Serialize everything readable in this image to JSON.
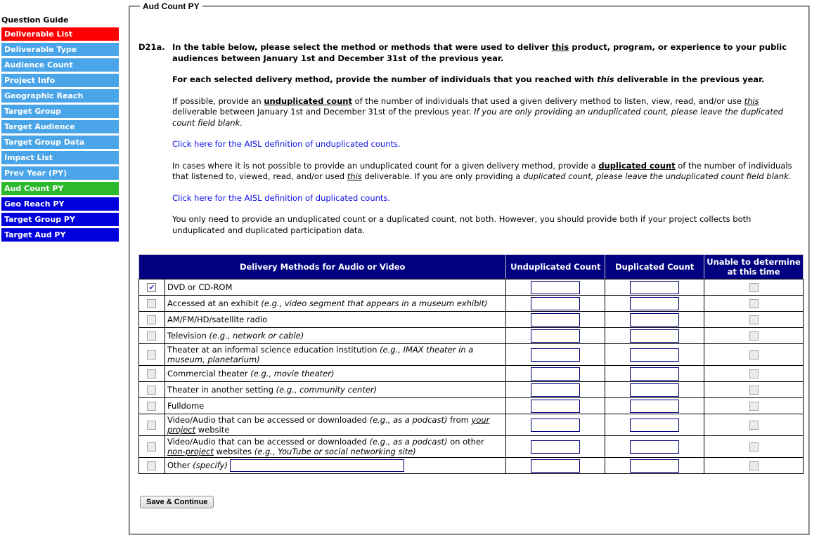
{
  "colors": {
    "sidebar_red": "#ff0000",
    "sidebar_lightblue": "#4aa5e8",
    "sidebar_green": "#2db92d",
    "sidebar_darkblue": "#0000dd",
    "table_header_bg": "#000080",
    "link_blue": "#0e0ee4",
    "input_border": "#000080"
  },
  "icons": {
    "checkmark": "✔"
  },
  "sidebar": {
    "title": "Question Guide",
    "items": [
      {
        "label": "Deliverable List",
        "color": "sidebar_red"
      },
      {
        "label": "Deliverable Type",
        "color": "sidebar_lightblue"
      },
      {
        "label": "Audience Count",
        "color": "sidebar_lightblue"
      },
      {
        "label": "Project Info",
        "color": "sidebar_lightblue"
      },
      {
        "label": "Geographic Reach",
        "color": "sidebar_lightblue"
      },
      {
        "label": "Target Group",
        "color": "sidebar_lightblue"
      },
      {
        "label": "Target Audience",
        "color": "sidebar_lightblue"
      },
      {
        "label": "Target Group Data",
        "color": "sidebar_lightblue"
      },
      {
        "label": "Impact List",
        "color": "sidebar_lightblue"
      },
      {
        "label": "Prev Year (PY)",
        "color": "sidebar_lightblue"
      },
      {
        "label": "Aud Count PY",
        "color": "sidebar_green"
      },
      {
        "label": "Geo Reach PY",
        "color": "sidebar_darkblue"
      },
      {
        "label": "Target Group PY",
        "color": "sidebar_darkblue"
      },
      {
        "label": "Target Aud PY",
        "color": "sidebar_darkblue"
      }
    ]
  },
  "panel": {
    "legend": "Aud Count PY"
  },
  "question": {
    "number": "D21a.",
    "paragraphs": [
      {
        "style": "bold",
        "segments": [
          {
            "t": "In the table below, please select the method or methods that were used to deliver "
          },
          {
            "t": "this",
            "u": true
          },
          {
            "t": " product, program, or experience to your public audiences between January 1st and December 31st of the previous year."
          }
        ]
      },
      {
        "style": "bold",
        "segments": [
          {
            "t": "For each selected delivery method, provide the number of individuals that you reached with "
          },
          {
            "t": "this",
            "i": true
          },
          {
            "t": " deliverable in the previous year."
          }
        ]
      },
      {
        "style": "normal",
        "segments": [
          {
            "t": "If possible, provide an "
          },
          {
            "t": "unduplicated count",
            "b": true,
            "u": true
          },
          {
            "t": " of the number of individuals that used a given delivery method to listen, view, read, and/or use "
          },
          {
            "t": "this",
            "i": true,
            "u": true
          },
          {
            "t": " deliverable between January 1st and December 31st of the previous year. "
          },
          {
            "t": "If you are only providing an unduplicated count, please leave the duplicated count field blank.",
            "i": true
          }
        ]
      },
      {
        "style": "link",
        "segments": [
          {
            "t": "Click here for the AISL definition of unduplicated counts."
          }
        ]
      },
      {
        "style": "normal",
        "segments": [
          {
            "t": "In cases where it is not possible to provide an unduplicated count for a given delivery method, provide a "
          },
          {
            "t": "duplicated count",
            "b": true,
            "u": true
          },
          {
            "t": " of the number of individuals that listened to, viewed, read, and/or used "
          },
          {
            "t": "this",
            "i": true,
            "u": true
          },
          {
            "t": " deliverable. If you are only providing a "
          },
          {
            "t": "duplicated count, please leave the unduplicated count field blank.",
            "i": true
          }
        ]
      },
      {
        "style": "link",
        "segments": [
          {
            "t": "Click here for the AISL definition of duplicated counts."
          }
        ]
      },
      {
        "style": "normal",
        "segments": [
          {
            "t": "You only need to provide an unduplicated count or a duplicated count, not both. However, you should provide both if your project collects both unduplicated and duplicated participation data."
          }
        ]
      }
    ]
  },
  "table": {
    "headers": [
      "Delivery Methods for Audio or Video",
      "Unduplicated Count",
      "Duplicated Count",
      "Unable to determine at this time"
    ],
    "rows": [
      {
        "checked": true,
        "segments": [
          {
            "t": "DVD or CD-ROM"
          }
        ]
      },
      {
        "checked": false,
        "segments": [
          {
            "t": "Accessed at an exhibit "
          },
          {
            "t": "(e.g., video segment that appears in a museum exhibit)",
            "i": true
          }
        ]
      },
      {
        "checked": false,
        "segments": [
          {
            "t": "AM/FM/HD/satellite radio"
          }
        ]
      },
      {
        "checked": false,
        "segments": [
          {
            "t": "Television "
          },
          {
            "t": "(e.g., network or cable)",
            "i": true
          }
        ]
      },
      {
        "checked": false,
        "segments": [
          {
            "t": "Theater at an informal science education institution "
          },
          {
            "t": "(e.g., IMAX theater in a museum, planetarium)",
            "i": true
          }
        ]
      },
      {
        "checked": false,
        "segments": [
          {
            "t": "Commercial theater "
          },
          {
            "t": "(e.g., movie theater)",
            "i": true
          }
        ]
      },
      {
        "checked": false,
        "segments": [
          {
            "t": "Theater in another setting "
          },
          {
            "t": "(e.g., community center)",
            "i": true
          }
        ]
      },
      {
        "checked": false,
        "segments": [
          {
            "t": "Fulldome"
          }
        ]
      },
      {
        "checked": false,
        "segments": [
          {
            "t": "Video/Audio that can be accessed or downloaded "
          },
          {
            "t": "(e.g., as a podcast)",
            "i": true
          },
          {
            "t": " from "
          },
          {
            "t": "your project",
            "i": true,
            "u": true
          },
          {
            "t": " website"
          }
        ]
      },
      {
        "checked": false,
        "segments": [
          {
            "t": "Video/Audio that can be accessed or downloaded "
          },
          {
            "t": "(e.g., as a podcast)",
            "i": true
          },
          {
            "t": " on other "
          },
          {
            "t": "non-project",
            "i": true,
            "u": true
          },
          {
            "t": " websites "
          },
          {
            "t": "(e.g., YouTube or social networking site)",
            "i": true
          }
        ]
      },
      {
        "checked": false,
        "segments": [
          {
            "t": "Other "
          },
          {
            "t": "(specify)",
            "i": true
          }
        ],
        "other_input": true
      }
    ],
    "count_inputs": {
      "unduplicated_value": "",
      "duplicated_value": "",
      "other_value": ""
    }
  },
  "buttons": {
    "save": "Save & Continue"
  }
}
